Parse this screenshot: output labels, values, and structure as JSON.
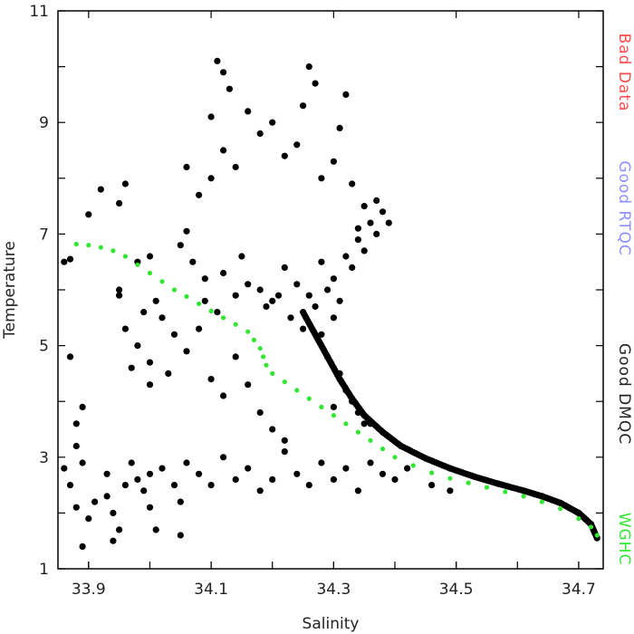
{
  "chart_data": {
    "type": "scatter",
    "xlabel": "Salinity",
    "ylabel": "Temperature",
    "xlim": [
      33.85,
      34.74
    ],
    "ylim": [
      1,
      11
    ],
    "xticks": [
      {
        "value": 33.9,
        "label": "33.9"
      },
      {
        "value": 34.1,
        "label": "34.1"
      },
      {
        "value": 34.3,
        "label": "34.3"
      },
      {
        "value": 34.5,
        "label": "34.5"
      },
      {
        "value": 34.7,
        "label": "34.7"
      }
    ],
    "yticks": [
      {
        "value": 1,
        "label": "1"
      },
      {
        "value": 3,
        "label": "3"
      },
      {
        "value": 5,
        "label": "5"
      },
      {
        "value": 7,
        "label": "7"
      },
      {
        "value": 9,
        "label": "9"
      },
      {
        "value": 11,
        "label": "11"
      }
    ],
    "legend_position": "right, vertical",
    "series": [
      {
        "name": "Good DMQC",
        "color": "#000000",
        "description_of_points": "dense cloud",
        "points": [
          [
            33.86,
            2.8
          ],
          [
            33.87,
            2.5
          ],
          [
            33.88,
            3.2
          ],
          [
            33.88,
            2.1
          ],
          [
            33.89,
            2.9
          ],
          [
            33.9,
            1.9
          ],
          [
            33.91,
            2.2
          ],
          [
            33.89,
            1.4
          ],
          [
            33.87,
            4.8
          ],
          [
            33.88,
            3.6
          ],
          [
            33.89,
            3.9
          ],
          [
            33.86,
            6.5
          ],
          [
            33.87,
            6.55
          ],
          [
            33.9,
            7.35
          ],
          [
            33.92,
            7.8
          ],
          [
            33.96,
            7.9
          ],
          [
            33.95,
            7.55
          ],
          [
            33.93,
            2.7
          ],
          [
            33.93,
            2.3
          ],
          [
            33.94,
            2.0
          ],
          [
            33.95,
            1.7
          ],
          [
            33.94,
            1.5
          ],
          [
            33.96,
            2.5
          ],
          [
            33.97,
            2.9
          ],
          [
            33.98,
            2.6
          ],
          [
            33.99,
            2.4
          ],
          [
            34.0,
            2.7
          ],
          [
            34.0,
            2.1
          ],
          [
            34.01,
            1.7
          ],
          [
            34.02,
            2.8
          ],
          [
            34.04,
            2.5
          ],
          [
            34.05,
            2.2
          ],
          [
            34.06,
            2.9
          ],
          [
            34.08,
            2.7
          ],
          [
            34.1,
            2.5
          ],
          [
            34.12,
            3.0
          ],
          [
            34.14,
            2.6
          ],
          [
            34.16,
            2.8
          ],
          [
            34.18,
            2.4
          ],
          [
            34.2,
            2.6
          ],
          [
            34.22,
            3.1
          ],
          [
            34.24,
            2.7
          ],
          [
            34.26,
            2.5
          ],
          [
            34.28,
            2.9
          ],
          [
            34.3,
            2.6
          ],
          [
            34.32,
            2.8
          ],
          [
            34.34,
            2.4
          ],
          [
            34.36,
            2.9
          ],
          [
            34.38,
            2.7
          ],
          [
            34.4,
            2.6
          ],
          [
            34.42,
            2.8
          ],
          [
            34.46,
            2.5
          ],
          [
            34.49,
            2.4
          ],
          [
            34.36,
            3.6
          ],
          [
            34.3,
            3.9
          ],
          [
            34.05,
            1.6
          ],
          [
            33.96,
            5.3
          ],
          [
            33.98,
            5.0
          ],
          [
            34.0,
            4.7
          ],
          [
            33.97,
            4.6
          ],
          [
            34.02,
            5.5
          ],
          [
            34.01,
            5.8
          ],
          [
            34.04,
            5.2
          ],
          [
            33.95,
            5.9
          ],
          [
            33.99,
            5.6
          ],
          [
            34.0,
            4.3
          ],
          [
            34.03,
            4.5
          ],
          [
            34.06,
            4.9
          ],
          [
            34.08,
            5.3
          ],
          [
            34.1,
            4.4
          ],
          [
            34.12,
            4.1
          ],
          [
            34.14,
            4.8
          ],
          [
            34.16,
            4.3
          ],
          [
            34.18,
            3.8
          ],
          [
            34.2,
            3.5
          ],
          [
            34.22,
            3.3
          ],
          [
            33.95,
            6.0
          ],
          [
            33.98,
            6.5
          ],
          [
            34.0,
            6.6
          ],
          [
            34.06,
            7.05
          ],
          [
            34.09,
            6.2
          ],
          [
            34.12,
            6.3
          ],
          [
            34.15,
            6.6
          ],
          [
            34.18,
            6.0
          ],
          [
            34.2,
            5.8
          ],
          [
            34.22,
            6.4
          ],
          [
            34.24,
            6.1
          ],
          [
            34.26,
            5.9
          ],
          [
            34.28,
            6.5
          ],
          [
            34.3,
            6.2
          ],
          [
            34.32,
            6.6
          ],
          [
            34.34,
            6.9
          ],
          [
            34.36,
            7.2
          ],
          [
            34.38,
            7.4
          ],
          [
            34.37,
            7.6
          ],
          [
            34.34,
            7.1
          ],
          [
            34.3,
            5.5
          ],
          [
            34.28,
            5.2
          ],
          [
            34.29,
            4.8
          ],
          [
            34.31,
            4.5
          ],
          [
            34.32,
            4.2
          ],
          [
            34.33,
            4.0
          ],
          [
            34.34,
            3.8
          ],
          [
            34.35,
            3.6
          ],
          [
            34.1,
            8.0
          ],
          [
            34.12,
            8.5
          ],
          [
            34.14,
            8.2
          ],
          [
            34.1,
            9.1
          ],
          [
            34.12,
            9.9
          ],
          [
            34.13,
            9.6
          ],
          [
            34.11,
            10.1
          ],
          [
            34.16,
            9.2
          ],
          [
            34.18,
            8.8
          ],
          [
            34.2,
            9.0
          ],
          [
            34.22,
            8.4
          ],
          [
            34.24,
            8.6
          ],
          [
            34.26,
            10.0
          ],
          [
            34.27,
            9.7
          ],
          [
            34.25,
            9.3
          ],
          [
            34.28,
            8.0
          ],
          [
            34.3,
            8.3
          ],
          [
            34.31,
            8.9
          ],
          [
            34.32,
            9.5
          ],
          [
            34.33,
            7.9
          ],
          [
            34.35,
            7.5
          ],
          [
            34.08,
            7.7
          ],
          [
            34.06,
            8.2
          ],
          [
            34.05,
            6.8
          ],
          [
            34.07,
            6.5
          ],
          [
            34.09,
            5.8
          ],
          [
            34.11,
            5.6
          ],
          [
            34.14,
            5.9
          ],
          [
            34.16,
            6.1
          ],
          [
            34.19,
            5.7
          ],
          [
            34.21,
            5.9
          ],
          [
            34.23,
            5.5
          ],
          [
            34.25,
            5.3
          ],
          [
            34.27,
            5.7
          ],
          [
            34.29,
            6.0
          ],
          [
            34.31,
            5.8
          ],
          [
            34.33,
            6.4
          ],
          [
            34.35,
            6.7
          ],
          [
            34.37,
            7.0
          ],
          [
            34.39,
            7.2
          ]
        ]
      },
      {
        "name": "WGHC",
        "color": "#33e633",
        "points": [
          [
            33.88,
            6.82
          ],
          [
            33.9,
            6.8
          ],
          [
            33.92,
            6.76
          ],
          [
            33.94,
            6.7
          ],
          [
            33.96,
            6.6
          ],
          [
            33.98,
            6.45
          ],
          [
            34.0,
            6.3
          ],
          [
            34.02,
            6.15
          ],
          [
            34.04,
            6.0
          ],
          [
            34.06,
            5.88
          ],
          [
            34.08,
            5.75
          ],
          [
            34.1,
            5.62
          ],
          [
            34.12,
            5.5
          ],
          [
            34.14,
            5.38
          ],
          [
            34.16,
            5.25
          ],
          [
            34.17,
            5.1
          ],
          [
            34.18,
            4.95
          ],
          [
            34.185,
            4.8
          ],
          [
            34.19,
            4.65
          ],
          [
            34.2,
            4.5
          ],
          [
            34.22,
            4.35
          ],
          [
            34.24,
            4.2
          ],
          [
            34.26,
            4.05
          ],
          [
            34.28,
            3.9
          ],
          [
            34.3,
            3.75
          ],
          [
            34.32,
            3.6
          ],
          [
            34.34,
            3.45
          ],
          [
            34.36,
            3.3
          ],
          [
            34.38,
            3.15
          ],
          [
            34.4,
            3.0
          ],
          [
            34.43,
            2.85
          ],
          [
            34.46,
            2.72
          ],
          [
            34.49,
            2.62
          ],
          [
            34.52,
            2.54
          ],
          [
            34.55,
            2.46
          ],
          [
            34.58,
            2.38
          ],
          [
            34.61,
            2.3
          ],
          [
            34.64,
            2.2
          ],
          [
            34.67,
            2.08
          ],
          [
            34.7,
            1.9
          ],
          [
            34.72,
            1.75
          ],
          [
            34.73,
            1.6
          ]
        ]
      },
      {
        "name": "Good RTQC",
        "color": "#8f8fff",
        "points": []
      },
      {
        "name": "Bad Data",
        "color": "#ff4a4a",
        "points": []
      }
    ],
    "dmqc_curve": {
      "color": "#000000",
      "points": [
        [
          34.25,
          5.6
        ],
        [
          34.27,
          5.2
        ],
        [
          34.29,
          4.8
        ],
        [
          34.31,
          4.4
        ],
        [
          34.33,
          4.05
        ],
        [
          34.35,
          3.75
        ],
        [
          34.38,
          3.45
        ],
        [
          34.41,
          3.2
        ],
        [
          34.45,
          2.98
        ],
        [
          34.49,
          2.8
        ],
        [
          34.53,
          2.65
        ],
        [
          34.57,
          2.52
        ],
        [
          34.61,
          2.4
        ],
        [
          34.64,
          2.3
        ],
        [
          34.67,
          2.18
        ],
        [
          34.7,
          2.0
        ],
        [
          34.72,
          1.8
        ],
        [
          34.73,
          1.55
        ]
      ]
    },
    "legend": [
      {
        "label": "Bad Data",
        "color": "#ff4a4a"
      },
      {
        "label": "Good RTQC",
        "color": "#8f8fff"
      },
      {
        "label": "Good DMQC",
        "color": "#222222"
      },
      {
        "label": "WGHC",
        "color": "#33e633"
      }
    ]
  }
}
